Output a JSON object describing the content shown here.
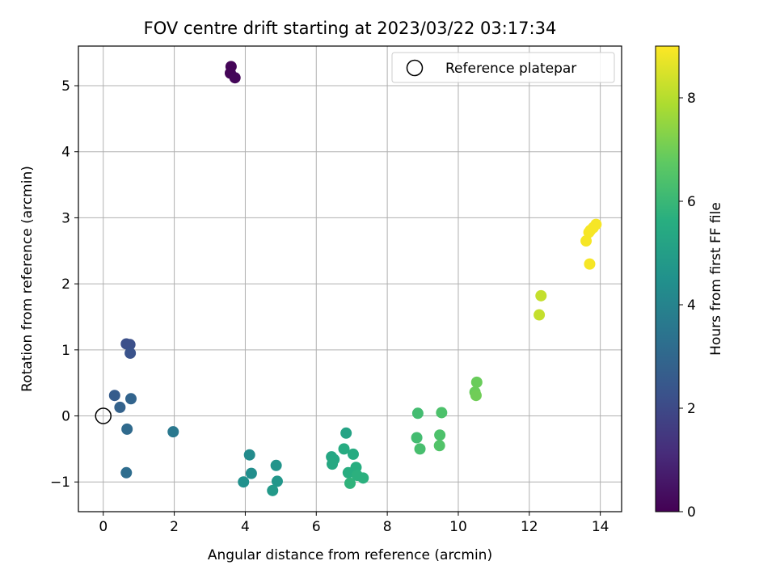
{
  "chart_data": {
    "type": "scatter",
    "title": "FOV centre drift starting at 2023/03/22 03:17:34",
    "xlabel": "Angular distance from reference (arcmin)",
    "ylabel": "Rotation from reference (arcmin)",
    "xlim": [
      -0.7,
      14.6
    ],
    "ylim": [
      -1.45,
      5.6
    ],
    "xticks": [
      0,
      2,
      4,
      6,
      8,
      10,
      12,
      14
    ],
    "yticks": [
      -1,
      0,
      1,
      2,
      3,
      4,
      5
    ],
    "grid": true,
    "legend": {
      "placement": "top-right",
      "entries": [
        "Reference platepar"
      ]
    },
    "reference_point": {
      "x": 0,
      "y": 0
    },
    "colorbar": {
      "label": "Hours from first FF file",
      "colormap": "viridis",
      "range": [
        0,
        9
      ],
      "ticks": [
        0,
        2,
        4,
        6,
        8
      ]
    },
    "points": [
      {
        "x": 3.6,
        "y": 5.29,
        "c": 0.1
      },
      {
        "x": 3.58,
        "y": 5.19,
        "c": 0.1
      },
      {
        "x": 3.71,
        "y": 5.12,
        "c": 0.15
      },
      {
        "x": 0.65,
        "y": 1.09,
        "c": 2.2
      },
      {
        "x": 0.75,
        "y": 1.08,
        "c": 2.2
      },
      {
        "x": 0.76,
        "y": 0.95,
        "c": 2.3
      },
      {
        "x": 0.32,
        "y": 0.31,
        "c": 2.6
      },
      {
        "x": 0.47,
        "y": 0.13,
        "c": 2.8
      },
      {
        "x": 0.78,
        "y": 0.26,
        "c": 2.9
      },
      {
        "x": 0.67,
        "y": -0.2,
        "c": 3.1
      },
      {
        "x": 0.65,
        "y": -0.86,
        "c": 3.2
      },
      {
        "x": 1.97,
        "y": -0.24,
        "c": 3.6
      },
      {
        "x": 4.12,
        "y": -0.59,
        "c": 4.3
      },
      {
        "x": 4.17,
        "y": -0.87,
        "c": 4.4
      },
      {
        "x": 3.95,
        "y": -1.0,
        "c": 4.5
      },
      {
        "x": 4.87,
        "y": -0.75,
        "c": 4.6
      },
      {
        "x": 4.9,
        "y": -0.99,
        "c": 4.7
      },
      {
        "x": 4.77,
        "y": -1.13,
        "c": 4.8
      },
      {
        "x": 6.84,
        "y": -0.26,
        "c": 5.2
      },
      {
        "x": 6.43,
        "y": -0.62,
        "c": 5.3
      },
      {
        "x": 6.5,
        "y": -0.66,
        "c": 5.35
      },
      {
        "x": 6.45,
        "y": -0.73,
        "c": 5.4
      },
      {
        "x": 6.78,
        "y": -0.5,
        "c": 5.5
      },
      {
        "x": 7.04,
        "y": -0.58,
        "c": 5.5
      },
      {
        "x": 7.12,
        "y": -0.78,
        "c": 5.6
      },
      {
        "x": 6.9,
        "y": -0.86,
        "c": 5.6
      },
      {
        "x": 7.15,
        "y": -0.9,
        "c": 5.7
      },
      {
        "x": 7.32,
        "y": -0.94,
        "c": 5.7
      },
      {
        "x": 6.95,
        "y": -1.02,
        "c": 5.8
      },
      {
        "x": 8.86,
        "y": 0.04,
        "c": 6.2
      },
      {
        "x": 8.83,
        "y": -0.33,
        "c": 6.2
      },
      {
        "x": 8.92,
        "y": -0.5,
        "c": 6.3
      },
      {
        "x": 9.53,
        "y": 0.05,
        "c": 6.4
      },
      {
        "x": 9.48,
        "y": -0.29,
        "c": 6.4
      },
      {
        "x": 9.47,
        "y": -0.45,
        "c": 6.5
      },
      {
        "x": 10.52,
        "y": 0.51,
        "c": 6.9
      },
      {
        "x": 10.47,
        "y": 0.36,
        "c": 6.9
      },
      {
        "x": 10.5,
        "y": 0.31,
        "c": 7.0
      },
      {
        "x": 12.33,
        "y": 1.82,
        "c": 8.2
      },
      {
        "x": 12.28,
        "y": 1.53,
        "c": 8.2
      },
      {
        "x": 13.6,
        "y": 2.65,
        "c": 8.9
      },
      {
        "x": 13.68,
        "y": 2.78,
        "c": 8.9
      },
      {
        "x": 13.72,
        "y": 2.81,
        "c": 8.9
      },
      {
        "x": 13.8,
        "y": 2.85,
        "c": 8.9
      },
      {
        "x": 13.88,
        "y": 2.9,
        "c": 8.9
      },
      {
        "x": 13.7,
        "y": 2.3,
        "c": 8.9
      }
    ]
  }
}
